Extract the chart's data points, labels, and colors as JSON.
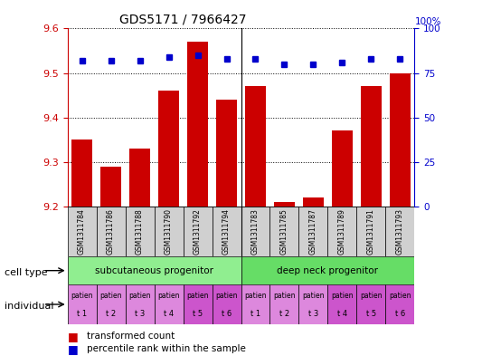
{
  "title": "GDS5171 / 7966427",
  "samples": [
    "GSM1311784",
    "GSM1311786",
    "GSM1311788",
    "GSM1311790",
    "GSM1311792",
    "GSM1311794",
    "GSM1311783",
    "GSM1311785",
    "GSM1311787",
    "GSM1311789",
    "GSM1311791",
    "GSM1311793"
  ],
  "transformed_counts": [
    9.35,
    9.29,
    9.33,
    9.46,
    9.57,
    9.44,
    9.47,
    9.21,
    9.22,
    9.37,
    9.47,
    9.5
  ],
  "percentile_ranks": [
    82,
    82,
    82,
    84,
    85,
    83,
    83,
    80,
    80,
    81,
    83,
    83
  ],
  "y_min": 9.2,
  "y_max": 9.6,
  "y_ticks": [
    9.2,
    9.3,
    9.4,
    9.5,
    9.6
  ],
  "y2_ticks": [
    0,
    25,
    50,
    75,
    100
  ],
  "bar_color": "#cc0000",
  "dot_color": "#0000cc",
  "cell_type_groups": [
    {
      "label": "subcutaneous progenitor",
      "start": 0,
      "end": 6,
      "color": "#90ee90"
    },
    {
      "label": "deep neck progenitor",
      "start": 6,
      "end": 12,
      "color": "#66dd66"
    }
  ],
  "individual_labels": [
    "t 1",
    "t 2",
    "t 3",
    "t 4",
    "t 5",
    "t 6",
    "t 1",
    "t 2",
    "t 3",
    "t 4",
    "t 5",
    "t 6"
  ],
  "individual_bg_colors": [
    "#dd88dd",
    "#dd88dd",
    "#dd88dd",
    "#dd88dd",
    "#cc55cc",
    "#cc55cc",
    "#dd88dd",
    "#dd88dd",
    "#dd88dd",
    "#cc55cc",
    "#cc55cc",
    "#cc55cc"
  ],
  "individual_top": "patien",
  "legend_bar_label": "transformed count",
  "legend_dot_label": "percentile rank within the sample",
  "cell_type_label": "cell type",
  "individual_label": "individual",
  "background_color": "#ffffff",
  "sample_box_color": "#d0d0d0",
  "tick_label_color_left": "#cc0000",
  "tick_label_color_right": "#0000cc",
  "bar_bottom": 9.2,
  "group_separator": 5.5
}
